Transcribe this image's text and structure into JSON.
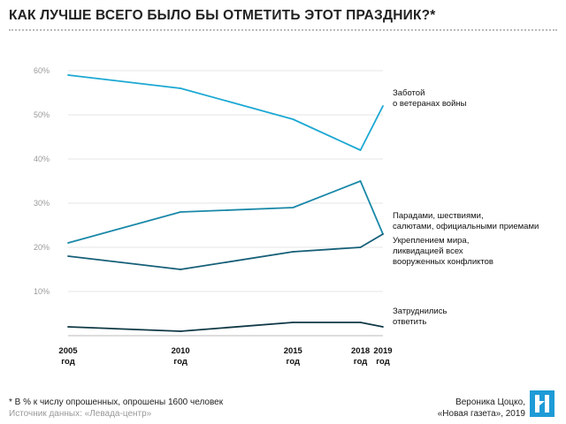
{
  "title": "КАК ЛУЧШЕ ВСЕГО БЫЛО БЫ ОТМЕТИТЬ ЭТОТ ПРАЗДНИК?*",
  "chart_data": {
    "type": "line",
    "title": "КАК ЛУЧШЕ ВСЕГО БЫЛО БЫ ОТМЕТИТЬ ЭТОТ ПРАЗДНИК?*",
    "x": [
      2005,
      2010,
      2015,
      2018,
      2019
    ],
    "x_labels": [
      [
        "2005",
        "год"
      ],
      [
        "2010",
        "год"
      ],
      [
        "2015",
        "год"
      ],
      [
        "2018",
        "год"
      ],
      [
        "2019",
        "год"
      ]
    ],
    "y_ticks": [
      10,
      20,
      30,
      40,
      50,
      60
    ],
    "y_tick_labels": [
      "10%",
      "20%",
      "30%",
      "40%",
      "50%",
      "60%"
    ],
    "ylim": [
      0,
      60
    ],
    "grid": true,
    "series": [
      {
        "name": "Заботой о ветеранах войны",
        "label_lines": [
          "Заботой",
          "о ветеранах войны"
        ],
        "color": "#1ba8d3",
        "values": [
          59,
          56,
          49,
          42,
          52
        ]
      },
      {
        "name": "Парадами, шествиями, салютами, официальными приемами",
        "label_lines": [
          "Парадами, шествиями,",
          "салютами, официальными приемами"
        ],
        "color": "#1a88a8",
        "values": [
          21,
          28,
          29,
          35,
          23
        ]
      },
      {
        "name": "Укреплением мира, ликвидацией всех вооруженных конфликтов",
        "label_lines": [
          "Укреплением мира,",
          "ликвидацией всех",
          "вооруженных конфликтов"
        ],
        "color": "#155f78",
        "values": [
          18,
          15,
          19,
          20,
          23
        ]
      },
      {
        "name": "Затруднились ответить",
        "label_lines": [
          "Затруднились",
          "ответить"
        ],
        "color": "#0f3946",
        "values": [
          2,
          1,
          3,
          3,
          2
        ]
      }
    ]
  },
  "footer": {
    "note": "* В % к числу опрошенных, опрошены 1600 человек",
    "source": "Источник данных: «Левада-центр»",
    "author": "Вероника Цоцко,",
    "publication": "«Новая газета», 2019"
  },
  "logo_text": "Н"
}
